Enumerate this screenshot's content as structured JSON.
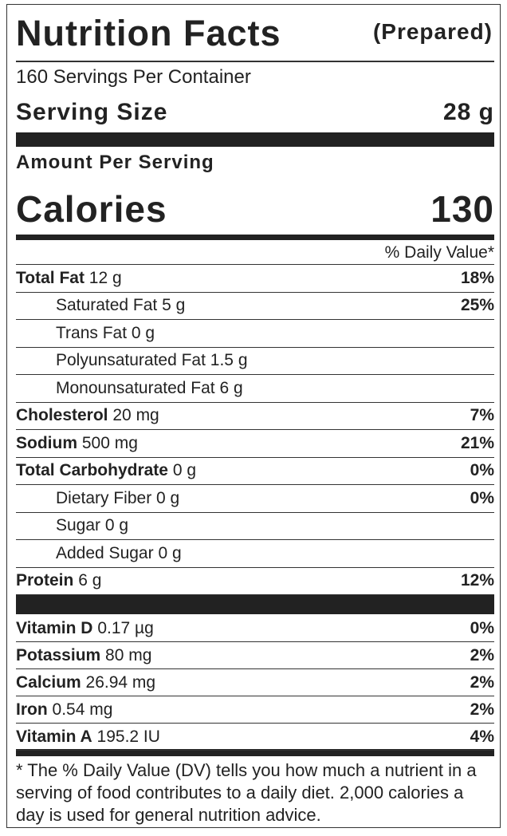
{
  "header": {
    "title": "Nutrition Facts",
    "subtitle": "(Prepared)"
  },
  "servings": "160 Servings Per Container",
  "serving_size": {
    "label": "Serving Size",
    "value": "28 g"
  },
  "amount_per_serving": "Amount Per Serving",
  "calories": {
    "label": "Calories",
    "value": "130"
  },
  "dv_header": "% Daily Value*",
  "nutrients": [
    {
      "name": "Total Fat",
      "amount": "12 g",
      "dv": "18%",
      "indent": false
    },
    {
      "name": "Saturated Fat",
      "amount": "5 g",
      "dv": "25%",
      "indent": true
    },
    {
      "name": "Trans Fat",
      "amount": "0 g",
      "indent": true
    },
    {
      "name": "Polyunsaturated Fat",
      "amount": "1.5 g",
      "indent": true
    },
    {
      "name": "Monounsaturated Fat",
      "amount": "6 g",
      "indent": true
    },
    {
      "name": "Cholesterol",
      "amount": "20 mg",
      "dv": "7%",
      "indent": false
    },
    {
      "name": "Sodium",
      "amount": "500 mg",
      "dv": "21%",
      "indent": false
    },
    {
      "name": "Total Carbohydrate",
      "amount": "0 g",
      "dv": "0%",
      "indent": false
    },
    {
      "name": "Dietary Fiber",
      "amount": "0 g",
      "dv": "0%",
      "indent": true
    },
    {
      "name": "Sugar",
      "amount": "0 g",
      "indent": true
    },
    {
      "name": "Added Sugar",
      "amount": "0 g",
      "indent": true
    },
    {
      "name": "Protein",
      "amount": "6 g",
      "dv": "12%",
      "indent": false
    }
  ],
  "vitamins": [
    {
      "name": "Vitamin D",
      "amount": "0.17 µg",
      "dv": "0%"
    },
    {
      "name": "Potassium",
      "amount": "80 mg",
      "dv": "2%"
    },
    {
      "name": "Calcium",
      "amount": "26.94 mg",
      "dv": "2%"
    },
    {
      "name": "Iron",
      "amount": "0.54 mg",
      "dv": "2%"
    },
    {
      "name": "Vitamin A",
      "amount": "195.2 IU",
      "dv": "4%"
    }
  ],
  "footnote": "* The % Daily Value (DV) tells you how much a nutrient in a serving of food contributes to a daily diet. 2,000 calories a day is used for general nutrition advice."
}
